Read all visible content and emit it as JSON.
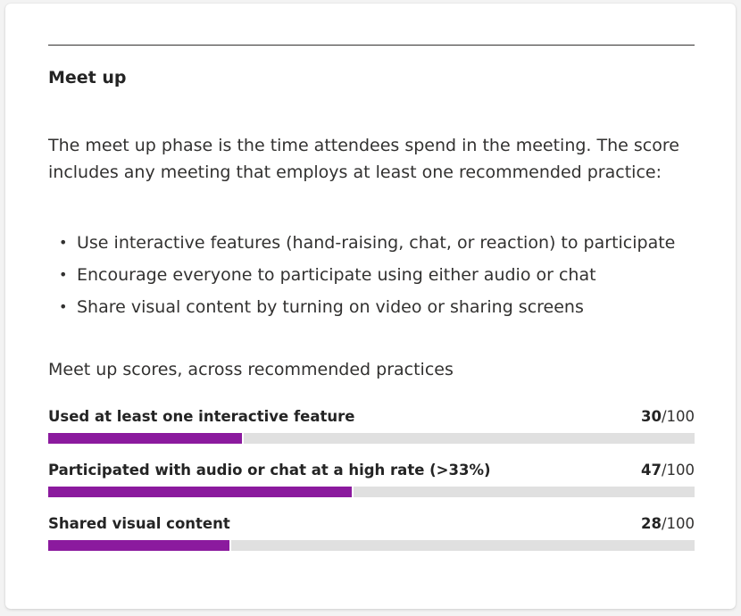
{
  "section": {
    "title": "Meet up",
    "description": "The meet up phase is the time attendees spend in the meeting. The score includes any meeting that employs at least one recommended practice:"
  },
  "practices": [
    "Use interactive features (hand-raising, chat, or reaction) to participate",
    "Encourage everyone to participate using either audio or chat",
    "Share visual content by turning on video or sharing screens"
  ],
  "scores": {
    "heading": "Meet up scores, across recommended practices",
    "max_label": "/100",
    "bar_color": "#8b1a9e",
    "track_color": "#e0e0e0",
    "items": [
      {
        "label": "Used at least one interactive feature",
        "value": 30,
        "max": 100
      },
      {
        "label": "Participated with audio or chat at a high rate (>33%)",
        "value": 47,
        "max": 100
      },
      {
        "label": "Shared visual content",
        "value": 28,
        "max": 100
      }
    ]
  }
}
